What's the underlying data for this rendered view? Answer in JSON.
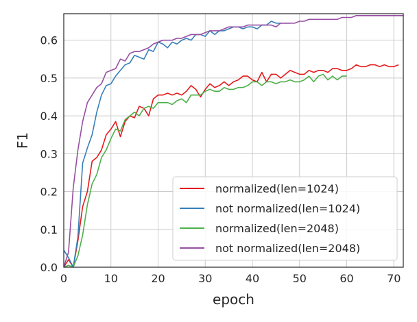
{
  "chart_data": {
    "type": "line",
    "title": "",
    "xlabel": "epoch",
    "ylabel": "F1",
    "xlim": [
      0,
      72
    ],
    "ylim": [
      0,
      0.67
    ],
    "xticks": [
      0,
      10,
      20,
      30,
      40,
      50,
      60,
      70
    ],
    "yticks": [
      0.0,
      0.1,
      0.2,
      0.3,
      0.4,
      0.5,
      0.6
    ],
    "xtick_labels": [
      "0",
      "10",
      "20",
      "30",
      "40",
      "50",
      "60",
      "70"
    ],
    "ytick_labels": [
      "0.0",
      "0.1",
      "0.2",
      "0.3",
      "0.4",
      "0.5",
      "0.6"
    ],
    "grid": true,
    "legend_position": "lower-right",
    "series": [
      {
        "name": "normalized(len=1024)",
        "color": "#e41a1c",
        "x": [
          0,
          1,
          2,
          3,
          4,
          5,
          6,
          7,
          8,
          9,
          10,
          11,
          12,
          13,
          14,
          15,
          16,
          17,
          18,
          19,
          20,
          21,
          22,
          23,
          24,
          25,
          26,
          27,
          28,
          29,
          30,
          31,
          32,
          33,
          34,
          35,
          36,
          37,
          38,
          39,
          40,
          41,
          42,
          43,
          44,
          45,
          46,
          47,
          48,
          49,
          50,
          51,
          52,
          53,
          54,
          55,
          56,
          57,
          58,
          59,
          60,
          61,
          62,
          63,
          64,
          65,
          66,
          67,
          68,
          69,
          70,
          71
        ],
        "y": [
          0.0,
          0.02,
          0.0,
          0.07,
          0.16,
          0.2,
          0.28,
          0.29,
          0.31,
          0.35,
          0.365,
          0.385,
          0.345,
          0.385,
          0.4,
          0.395,
          0.425,
          0.42,
          0.4,
          0.445,
          0.455,
          0.455,
          0.46,
          0.455,
          0.46,
          0.455,
          0.465,
          0.48,
          0.47,
          0.45,
          0.47,
          0.485,
          0.475,
          0.48,
          0.49,
          0.48,
          0.49,
          0.495,
          0.505,
          0.505,
          0.495,
          0.49,
          0.515,
          0.49,
          0.51,
          0.51,
          0.5,
          0.51,
          0.52,
          0.515,
          0.51,
          0.51,
          0.52,
          0.515,
          0.52,
          0.52,
          0.515,
          0.525,
          0.525,
          0.52,
          0.52,
          0.525,
          0.535,
          0.53,
          0.53,
          0.535,
          0.535,
          0.53,
          0.535,
          0.53,
          0.53,
          0.535
        ]
      },
      {
        "name": "not normalized(len=1024)",
        "color": "#377eb8",
        "x": [
          0,
          1,
          2,
          3,
          4,
          5,
          6,
          7,
          8,
          9,
          10,
          11,
          12,
          13,
          14,
          15,
          16,
          17,
          18,
          19,
          20,
          21,
          22,
          23,
          24,
          25,
          26,
          27,
          28,
          29,
          30,
          31,
          32,
          33,
          34,
          35,
          36,
          37,
          38,
          39,
          40,
          41,
          42,
          43,
          44,
          45,
          46,
          47,
          48
        ],
        "y": [
          0.045,
          0.025,
          0.0,
          0.08,
          0.275,
          0.315,
          0.35,
          0.41,
          0.455,
          0.48,
          0.485,
          0.505,
          0.52,
          0.535,
          0.54,
          0.56,
          0.555,
          0.55,
          0.575,
          0.57,
          0.595,
          0.59,
          0.58,
          0.595,
          0.59,
          0.6,
          0.605,
          0.6,
          0.615,
          0.615,
          0.61,
          0.625,
          0.615,
          0.625,
          0.625,
          0.63,
          0.635,
          0.635,
          0.63,
          0.635,
          0.635,
          0.63,
          0.64,
          0.64,
          0.65,
          0.645,
          0.645,
          0.645,
          0.645
        ]
      },
      {
        "name": "normalized(len=2048)",
        "color": "#4daf4a",
        "x": [
          0,
          1,
          2,
          3,
          4,
          5,
          6,
          7,
          8,
          9,
          10,
          11,
          12,
          13,
          14,
          15,
          16,
          17,
          18,
          19,
          20,
          21,
          22,
          23,
          24,
          25,
          26,
          27,
          28,
          29,
          30,
          31,
          32,
          33,
          34,
          35,
          36,
          37,
          38,
          39,
          40,
          41,
          42,
          43,
          44,
          45,
          46,
          47,
          48,
          49,
          50,
          51,
          52,
          53,
          54,
          55,
          56,
          57,
          58,
          59,
          60
        ],
        "y": [
          0.0,
          0.005,
          0.0,
          0.03,
          0.085,
          0.165,
          0.22,
          0.245,
          0.29,
          0.31,
          0.34,
          0.365,
          0.36,
          0.39,
          0.4,
          0.41,
          0.4,
          0.42,
          0.425,
          0.42,
          0.435,
          0.435,
          0.435,
          0.43,
          0.44,
          0.445,
          0.435,
          0.455,
          0.455,
          0.455,
          0.465,
          0.47,
          0.465,
          0.465,
          0.475,
          0.47,
          0.47,
          0.475,
          0.475,
          0.48,
          0.49,
          0.49,
          0.48,
          0.49,
          0.49,
          0.485,
          0.49,
          0.49,
          0.495,
          0.49,
          0.49,
          0.495,
          0.505,
          0.49,
          0.505,
          0.51,
          0.495,
          0.505,
          0.495,
          0.505,
          0.505
        ]
      },
      {
        "name": "not normalized(len=2048)",
        "color": "#984ea3",
        "x": [
          0,
          1,
          2,
          3,
          4,
          5,
          6,
          7,
          8,
          9,
          10,
          11,
          12,
          13,
          14,
          15,
          16,
          17,
          18,
          19,
          20,
          21,
          22,
          23,
          24,
          25,
          26,
          27,
          28,
          29,
          30,
          31,
          32,
          33,
          34,
          35,
          36,
          37,
          38,
          39,
          40,
          41,
          42,
          43,
          44,
          45,
          46,
          47,
          48,
          49,
          50,
          51,
          52,
          53,
          54,
          55,
          56,
          57,
          58,
          59,
          60,
          61,
          62,
          63,
          64,
          65,
          66,
          67,
          68,
          69,
          70,
          71,
          72
        ],
        "y": [
          0.0,
          0.04,
          0.21,
          0.31,
          0.385,
          0.435,
          0.455,
          0.475,
          0.485,
          0.515,
          0.52,
          0.525,
          0.55,
          0.545,
          0.565,
          0.57,
          0.57,
          0.575,
          0.58,
          0.59,
          0.595,
          0.6,
          0.6,
          0.6,
          0.605,
          0.605,
          0.61,
          0.615,
          0.615,
          0.615,
          0.62,
          0.625,
          0.625,
          0.625,
          0.63,
          0.635,
          0.635,
          0.635,
          0.635,
          0.64,
          0.64,
          0.64,
          0.64,
          0.64,
          0.64,
          0.635,
          0.645,
          0.645,
          0.645,
          0.645,
          0.65,
          0.65,
          0.655,
          0.655,
          0.655,
          0.655,
          0.655,
          0.655,
          0.655,
          0.66,
          0.66,
          0.66,
          0.665,
          0.665,
          0.665,
          0.665,
          0.665,
          0.665,
          0.665,
          0.665,
          0.665,
          0.665,
          0.665
        ]
      }
    ]
  }
}
